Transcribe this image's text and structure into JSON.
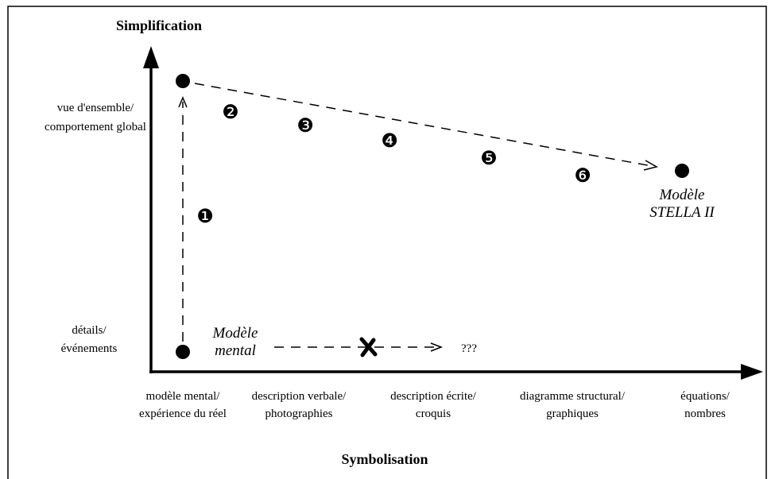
{
  "y_axis": {
    "title": "Simplification",
    "levels": [
      [
        "vue d'ensemble/",
        "comportement global"
      ],
      [
        "détails/",
        "événements"
      ]
    ]
  },
  "x_axis": {
    "title": "Symbolisation",
    "levels": [
      [
        "modèle mental/",
        "expérience du réel"
      ],
      [
        "description verbale/",
        "photographies"
      ],
      [
        "description écrite/",
        "croquis"
      ],
      [
        "diagramme structural/",
        "graphiques"
      ],
      [
        "équations/",
        "nombres"
      ]
    ]
  },
  "models": {
    "mental": [
      "Modèle",
      "mental"
    ],
    "stella": [
      "Modèle",
      "STELLA II"
    ]
  },
  "steps": [
    "❶",
    "❷",
    "❸",
    "❹",
    "❺",
    "❻"
  ],
  "unknown": "???"
}
